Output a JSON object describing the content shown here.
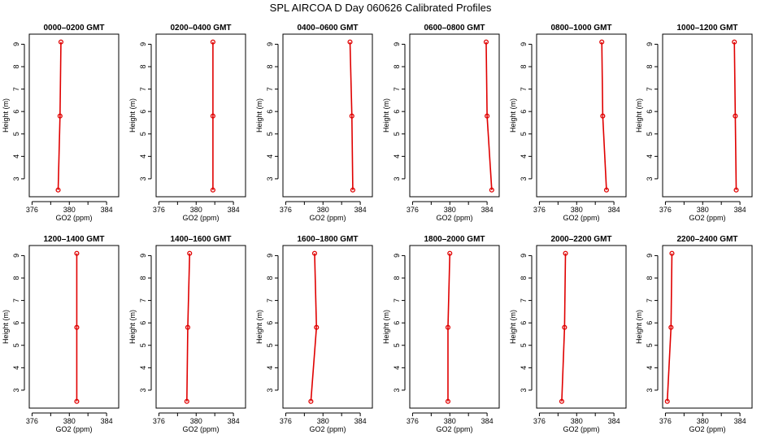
{
  "figure": {
    "title": "SPL AIRCOA D  Day 060626  Calibrated Profiles"
  },
  "chart_data": [
    {
      "type": "line",
      "title": "0000–0200 GMT",
      "xlabel": "GO2 (ppm)",
      "ylabel": "Height (m)",
      "series": [
        {
          "x": [
            378.8,
            379.0,
            379.1
          ],
          "y": [
            2.5,
            5.8,
            9.1
          ]
        }
      ]
    },
    {
      "type": "line",
      "title": "0200–0400 GMT",
      "xlabel": "GO2 (ppm)",
      "ylabel": "Height (m)",
      "series": [
        {
          "x": [
            381.8,
            381.8,
            381.8
          ],
          "y": [
            2.5,
            5.8,
            9.1
          ]
        }
      ]
    },
    {
      "type": "line",
      "title": "0400–0600 GMT",
      "xlabel": "GO2 (ppm)",
      "ylabel": "Height (m)",
      "series": [
        {
          "x": [
            383.2,
            383.1,
            382.9
          ],
          "y": [
            2.5,
            5.8,
            9.1
          ]
        }
      ]
    },
    {
      "type": "line",
      "title": "0600–0800 GMT",
      "xlabel": "GO2 (ppm)",
      "ylabel": "Height (m)",
      "series": [
        {
          "x": [
            384.5,
            384.0,
            383.9
          ],
          "y": [
            2.5,
            5.8,
            9.1
          ]
        }
      ]
    },
    {
      "type": "line",
      "title": "0800–1000 GMT",
      "xlabel": "GO2 (ppm)",
      "ylabel": "Height (m)",
      "series": [
        {
          "x": [
            383.2,
            382.8,
            382.7
          ],
          "y": [
            2.5,
            5.8,
            9.1
          ]
        }
      ]
    },
    {
      "type": "line",
      "title": "1000–1200 GMT",
      "xlabel": "GO2 (ppm)",
      "ylabel": "Height (m)",
      "series": [
        {
          "x": [
            383.6,
            383.5,
            383.4
          ],
          "y": [
            2.5,
            5.8,
            9.1
          ]
        }
      ]
    },
    {
      "type": "line",
      "title": "1200–1400 GMT",
      "xlabel": "GO2 (ppm)",
      "ylabel": "Height (m)",
      "series": [
        {
          "x": [
            380.8,
            380.8,
            380.8
          ],
          "y": [
            2.5,
            5.8,
            9.1
          ]
        }
      ]
    },
    {
      "type": "line",
      "title": "1400–1600 GMT",
      "xlabel": "GO2 (ppm)",
      "ylabel": "Height (m)",
      "series": [
        {
          "x": [
            379.0,
            379.1,
            379.3
          ],
          "y": [
            2.5,
            5.8,
            9.1
          ]
        }
      ]
    },
    {
      "type": "line",
      "title": "1600–1800 GMT",
      "xlabel": "GO2 (ppm)",
      "ylabel": "Height (m)",
      "series": [
        {
          "x": [
            378.7,
            379.3,
            379.1
          ],
          "y": [
            2.5,
            5.8,
            9.1
          ]
        }
      ]
    },
    {
      "type": "line",
      "title": "1800–2000 GMT",
      "xlabel": "GO2 (ppm)",
      "ylabel": "Height (m)",
      "series": [
        {
          "x": [
            379.8,
            379.8,
            380.0
          ],
          "y": [
            2.5,
            5.8,
            9.1
          ]
        }
      ]
    },
    {
      "type": "line",
      "title": "2000–2200 GMT",
      "xlabel": "GO2 (ppm)",
      "ylabel": "Height (m)",
      "series": [
        {
          "x": [
            378.4,
            378.7,
            378.8
          ],
          "y": [
            2.5,
            5.8,
            9.1
          ]
        }
      ]
    },
    {
      "type": "line",
      "title": "2200–2400 GMT",
      "xlabel": "GO2 (ppm)",
      "ylabel": "Height (m)",
      "series": [
        {
          "x": [
            376.2,
            376.6,
            376.7
          ],
          "y": [
            2.5,
            5.8,
            9.1
          ]
        }
      ]
    }
  ],
  "axes": {
    "xlim": [
      375.7,
      385.3
    ],
    "ylim": [
      2.2,
      9.45
    ],
    "xticks": [
      376,
      378,
      380,
      382,
      384
    ],
    "xtick_labels": [
      "376",
      "380",
      "384"
    ],
    "yticks": [
      3,
      4,
      5,
      6,
      7,
      8,
      9
    ],
    "ytick_labels": [
      "3",
      "4",
      "5",
      "6",
      "7",
      "8",
      "9"
    ],
    "line_color": "#e00000",
    "marker": "open-circle"
  }
}
